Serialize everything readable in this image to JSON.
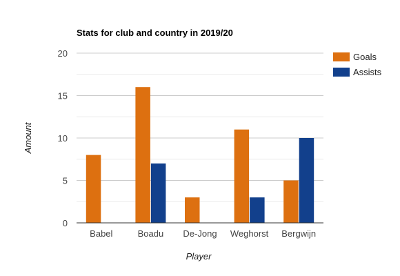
{
  "chart_data": {
    "type": "bar",
    "title": "Stats for club and country in 2019/20",
    "xlabel": "Player",
    "ylabel": "Amount",
    "categories": [
      "Babel",
      "Boadu",
      "De-Jong",
      "Weghorst",
      "Bergwijn"
    ],
    "series": [
      {
        "name": "Goals",
        "color": "#dd7010",
        "values": [
          8,
          16,
          3,
          11,
          5
        ]
      },
      {
        "name": "Assists",
        "color": "#12408c",
        "values": [
          0,
          7,
          0,
          3,
          10
        ]
      }
    ],
    "ylim": [
      0,
      20
    ],
    "yticks": [
      0,
      5,
      10,
      15,
      20
    ],
    "grid": true,
    "legend": "right"
  }
}
